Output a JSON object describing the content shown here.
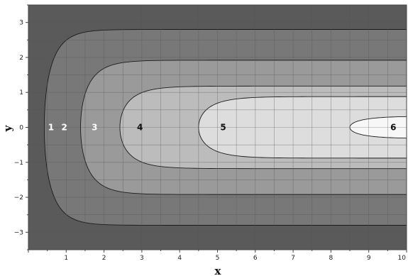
{
  "chart_data": {
    "type": "contour",
    "title": "",
    "xlabel": "x",
    "ylabel": "y",
    "xlim": [
      0,
      10
    ],
    "ylim": [
      -3.5,
      3.5
    ],
    "grid": true,
    "legend": "none",
    "x_ticks": [
      1,
      2,
      3,
      4,
      5,
      6,
      7,
      8,
      9,
      10
    ],
    "x_tick_labels": [
      "1",
      "2",
      "3",
      "4",
      "5",
      "6",
      "7",
      "8",
      "9",
      "10"
    ],
    "y_ticks": [
      3,
      2,
      1,
      0,
      -1,
      -2,
      -3
    ],
    "y_tick_labels": [
      "3",
      "2",
      "1",
      "0",
      "−1",
      "−2",
      "−3"
    ],
    "boundaries": [
      {
        "level": 1,
        "vertex_x": 0.42,
        "asymptote_y": 2.8
      },
      {
        "level": 2,
        "vertex_x": 1.38,
        "asymptote_y": 1.92
      },
      {
        "level": 3,
        "vertex_x": 2.42,
        "asymptote_y": 1.18
      },
      {
        "level": 4,
        "vertex_x": 4.5,
        "asymptote_y": 0.88
      },
      {
        "level": 5,
        "vertex_x": 8.5,
        "asymptote_y": 0.32
      }
    ],
    "regions": [
      {
        "label": "1",
        "x": 0.6,
        "y": 0,
        "color": "#5a5a5a",
        "text_color": "#ffffff"
      },
      {
        "label": "2",
        "x": 0.95,
        "y": 0,
        "color": "#787878",
        "text_color": "#ffffff"
      },
      {
        "label": "3",
        "x": 1.75,
        "y": 0,
        "color": "#9a9a9a",
        "text_color": "#ffffff"
      },
      {
        "label": "4",
        "x": 2.95,
        "y": 0,
        "color": "#bcbcbc",
        "text_color": "#111111"
      },
      {
        "label": "5",
        "x": 5.15,
        "y": 0,
        "color": "#dddddd",
        "text_color": "#111111"
      },
      {
        "label": "6",
        "x": 9.65,
        "y": 0,
        "color": "#f7f7f7",
        "text_color": "#111111"
      }
    ],
    "line_color": "#1a1a1a",
    "grid_color": "#555555"
  }
}
